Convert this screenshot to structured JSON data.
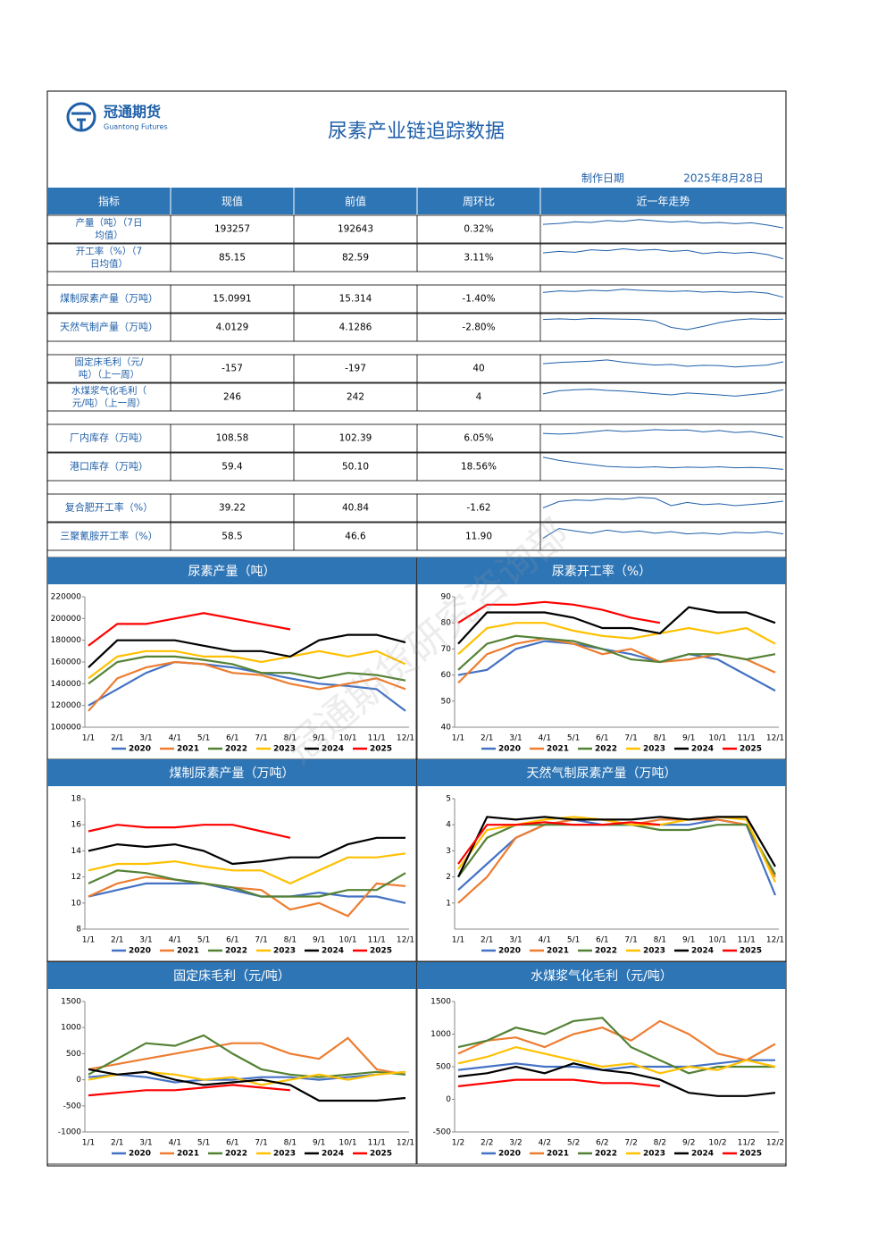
{
  "header": {
    "brand": "冠通期货",
    "brand_en": "Guantong Futures",
    "title": "尿素产业链追踪数据",
    "date_label": "制作日期",
    "date": "2025年8月28日",
    "watermark": "冠通期货研究咨询部"
  },
  "table": {
    "header": [
      "指标",
      "现值",
      "前值",
      "周环比",
      "近一年走势"
    ],
    "groups": [
      [
        {
          "label": "产量（吨）（7日均值）",
          "current": "193257",
          "previous": "192643",
          "change": "0.32%",
          "trend": [
            5,
            5.3,
            5.8,
            5.6,
            6.2,
            5.9,
            6.5,
            6.1,
            5.7,
            6,
            5.4,
            5.6,
            5.2,
            5.5,
            4.8,
            3.9
          ]
        },
        {
          "label": "开工率（%）（7日均值）",
          "current": "85.15",
          "previous": "82.59",
          "change": "3.11%",
          "trend": [
            5,
            5.5,
            5.2,
            6,
            5.7,
            6.3,
            5.8,
            6.1,
            5.5,
            5.8,
            4.8,
            5.3,
            4.9,
            5.2,
            4.5,
            3.2
          ]
        }
      ],
      [
        {
          "label": "煤制尿素产量（万吨）",
          "current": "15.0991",
          "previous": "15.314",
          "change": "-1.40%",
          "trend": [
            5.5,
            6,
            5.8,
            6.2,
            6,
            6.5,
            6.2,
            6,
            5.8,
            6,
            5.6,
            5.8,
            5.5,
            5.7,
            5.3,
            4
          ]
        },
        {
          "label": "天然气制产量（万吨）",
          "current": "4.0129",
          "previous": "4.1286",
          "change": "-2.80%",
          "trend": [
            6,
            6.2,
            6,
            6.3,
            6.2,
            6.1,
            6,
            5.5,
            3.5,
            2.8,
            3.8,
            5,
            5.8,
            6.2,
            6,
            6.1
          ]
        }
      ],
      [
        {
          "label": "固定床毛利（元/吨）（上一周）",
          "current": "-157",
          "previous": "-197",
          "change": "40",
          "trend": [
            5,
            5.4,
            5.6,
            5.8,
            6.2,
            5.5,
            5,
            4.6,
            4.8,
            4.2,
            4.5,
            4.4,
            4,
            4.3,
            4.6,
            5.6
          ]
        },
        {
          "label": "水煤浆气化毛利（元/吨）（上一周）",
          "current": "246",
          "previous": "242",
          "change": "4",
          "trend": [
            4.5,
            5.5,
            5.8,
            6,
            5.6,
            5.4,
            5,
            4.6,
            4.2,
            4.8,
            4.5,
            4.2,
            3.8,
            4.3,
            4.8,
            5.8
          ]
        }
      ],
      [
        {
          "label": "厂内库存（万吨）",
          "current": "108.58",
          "previous": "102.39",
          "change": "6.05%",
          "trend": [
            5,
            4.8,
            5,
            5.5,
            6,
            5.6,
            5.8,
            6.2,
            6,
            6.1,
            5.5,
            5.9,
            5.3,
            5.6,
            4.8,
            3.8
          ]
        },
        {
          "label": "港口库存（万吨）",
          "current": "59.4",
          "previous": "50.10",
          "change": "18.56%",
          "trend": [
            6.5,
            5.5,
            4.8,
            4.2,
            3.6,
            3.4,
            3.3,
            3.5,
            3.2,
            3.4,
            3.3,
            3.5,
            3.2,
            3.3,
            3.1,
            2.7
          ]
        }
      ],
      [
        {
          "label": "复合肥开工率（%）",
          "current": "39.22",
          "previous": "40.84",
          "change": "-1.62",
          "trend": [
            3.5,
            5.5,
            6,
            5.8,
            6.4,
            6.2,
            6.8,
            6.5,
            4.2,
            5.2,
            4.5,
            4.8,
            4.2,
            4.6,
            5,
            5.6
          ]
        },
        {
          "label": "三聚氰胺开工率（%）",
          "current": "58.5",
          "previous": "46.6",
          "change": "11.90",
          "trend": [
            3,
            6,
            5.2,
            4.5,
            5.5,
            4.8,
            5.2,
            4.5,
            5,
            4.3,
            4.6,
            4.2,
            4.8,
            4.6,
            5,
            4.3
          ]
        }
      ]
    ]
  },
  "chart_data": [
    {
      "type": "line",
      "title": "尿素产量（吨）",
      "categories": [
        "1/1",
        "2/1",
        "3/1",
        "4/1",
        "5/1",
        "6/1",
        "7/1",
        "8/1",
        "9/1",
        "10/1",
        "11/1",
        "12/1"
      ],
      "ylim": [
        100000,
        220000
      ],
      "yticks": [
        100000,
        120000,
        140000,
        160000,
        180000,
        200000,
        220000
      ],
      "legend": "bottom",
      "series": [
        {
          "name": "2020",
          "color": "#4472c4",
          "values": [
            120000,
            135000,
            150000,
            160000,
            158000,
            155000,
            150000,
            145000,
            140000,
            138000,
            135000,
            115000
          ]
        },
        {
          "name": "2021",
          "color": "#ed7d31",
          "values": [
            115000,
            145000,
            155000,
            160000,
            158000,
            150000,
            148000,
            140000,
            135000,
            140000,
            145000,
            135000
          ]
        },
        {
          "name": "2022",
          "color": "#548235",
          "values": [
            140000,
            160000,
            165000,
            165000,
            162000,
            158000,
            150000,
            150000,
            145000,
            150000,
            148000,
            143000
          ]
        },
        {
          "name": "2023",
          "color": "#ffc000",
          "values": [
            145000,
            165000,
            170000,
            170000,
            165000,
            165000,
            160000,
            165000,
            170000,
            165000,
            170000,
            158000
          ]
        },
        {
          "name": "2024",
          "color": "#000000",
          "values": [
            155000,
            180000,
            180000,
            180000,
            175000,
            170000,
            170000,
            165000,
            180000,
            185000,
            185000,
            178000
          ]
        },
        {
          "name": "2025",
          "color": "#ff0000",
          "values": [
            175000,
            195000,
            195000,
            200000,
            205000,
            200000,
            195000,
            190000,
            null,
            null,
            null,
            null
          ]
        }
      ]
    },
    {
      "type": "line",
      "title": "尿素开工率（%）",
      "categories": [
        "1/1",
        "2/1",
        "3/1",
        "4/1",
        "5/1",
        "6/1",
        "7/1",
        "8/1",
        "9/1",
        "10/1",
        "11/1",
        "12/1"
      ],
      "ylim": [
        40,
        90
      ],
      "yticks": [
        40,
        50,
        60,
        70,
        80,
        90
      ],
      "legend": "bottom",
      "series": [
        {
          "name": "2020",
          "color": "#4472c4",
          "values": [
            60,
            62,
            70,
            73,
            72,
            70,
            68,
            65,
            68,
            66,
            60,
            54
          ]
        },
        {
          "name": "2021",
          "color": "#ed7d31",
          "values": [
            57,
            68,
            72,
            74,
            72,
            68,
            70,
            65,
            66,
            68,
            66,
            61
          ]
        },
        {
          "name": "2022",
          "color": "#548235",
          "values": [
            62,
            72,
            75,
            74,
            73,
            70,
            66,
            65,
            68,
            68,
            66,
            68
          ]
        },
        {
          "name": "2023",
          "color": "#ffc000",
          "values": [
            68,
            78,
            80,
            80,
            77,
            75,
            74,
            76,
            78,
            76,
            78,
            72
          ]
        },
        {
          "name": "2024",
          "color": "#000000",
          "values": [
            72,
            84,
            84,
            84,
            82,
            78,
            78,
            76,
            86,
            84,
            84,
            80
          ]
        },
        {
          "name": "2025",
          "color": "#ff0000",
          "values": [
            80,
            87,
            87,
            88,
            87,
            85,
            82,
            80,
            null,
            null,
            null,
            null
          ]
        }
      ]
    },
    {
      "type": "line",
      "title": "煤制尿素产量（万吨）",
      "categories": [
        "1/1",
        "2/1",
        "3/1",
        "4/1",
        "5/1",
        "6/1",
        "7/1",
        "8/1",
        "9/1",
        "10/1",
        "11/1",
        "12/1"
      ],
      "ylim": [
        8,
        18
      ],
      "yticks": [
        8,
        10,
        12,
        14,
        16,
        18
      ],
      "legend": "bottom",
      "series": [
        {
          "name": "2020",
          "color": "#4472c4",
          "values": [
            10.5,
            11,
            11.5,
            11.5,
            11.5,
            11,
            10.5,
            10.5,
            10.8,
            10.5,
            10.5,
            10
          ]
        },
        {
          "name": "2021",
          "color": "#ed7d31",
          "values": [
            10.5,
            11.5,
            12,
            11.8,
            11.5,
            11.2,
            11,
            9.5,
            10,
            9,
            11.5,
            11.3
          ]
        },
        {
          "name": "2022",
          "color": "#548235",
          "values": [
            11.5,
            12.5,
            12.3,
            11.8,
            11.5,
            11.2,
            10.5,
            10.5,
            10.5,
            11,
            11,
            12.3
          ]
        },
        {
          "name": "2023",
          "color": "#ffc000",
          "values": [
            12.5,
            13,
            13,
            13.2,
            12.8,
            12.5,
            12.5,
            11.5,
            12.5,
            13.5,
            13.5,
            13.8
          ]
        },
        {
          "name": "2024",
          "color": "#000000",
          "values": [
            14,
            14.5,
            14.3,
            14.5,
            14,
            13,
            13.2,
            13.5,
            13.5,
            14.5,
            15,
            15
          ]
        },
        {
          "name": "2025",
          "color": "#ff0000",
          "values": [
            15.5,
            16,
            15.8,
            15.8,
            16,
            16,
            15.5,
            15,
            null,
            null,
            null,
            null
          ]
        }
      ]
    },
    {
      "type": "line",
      "title": "天然气制尿素产量（万吨）",
      "categories": [
        "1/1",
        "2/1",
        "3/1",
        "4/1",
        "5/1",
        "6/1",
        "7/1",
        "8/1",
        "9/1",
        "10/1",
        "11/1",
        "12/1"
      ],
      "ylim": [
        0,
        5
      ],
      "yticks": [
        1,
        2,
        3,
        4,
        5
      ],
      "legend": "bottom",
      "series": [
        {
          "name": "2020",
          "color": "#4472c4",
          "values": [
            1.5,
            2.5,
            3.5,
            4,
            4.2,
            4,
            4,
            4,
            4,
            4.2,
            4,
            1.3
          ]
        },
        {
          "name": "2021",
          "color": "#ed7d31",
          "values": [
            1,
            2,
            3.5,
            4,
            4.2,
            4.2,
            4,
            4.2,
            4.2,
            4.2,
            4,
            2
          ]
        },
        {
          "name": "2022",
          "color": "#548235",
          "values": [
            2,
            3.5,
            4,
            4,
            4,
            4,
            4,
            3.8,
            3.8,
            4,
            4,
            2.1
          ]
        },
        {
          "name": "2023",
          "color": "#ffc000",
          "values": [
            2.3,
            3.8,
            4,
            4.2,
            4.3,
            4.2,
            4,
            4,
            4.2,
            4.3,
            4.2,
            1.8
          ]
        },
        {
          "name": "2024",
          "color": "#000000",
          "values": [
            2,
            4.3,
            4.2,
            4.3,
            4.2,
            4.2,
            4.2,
            4.3,
            4.2,
            4.3,
            4.3,
            2.4
          ]
        },
        {
          "name": "2025",
          "color": "#ff0000",
          "values": [
            2.5,
            4,
            4,
            4.1,
            4,
            4,
            4.1,
            4,
            null,
            null,
            null,
            null
          ]
        }
      ]
    },
    {
      "type": "line",
      "title": "固定床毛利（元/吨）",
      "categories": [
        "1/1",
        "2/1",
        "3/1",
        "4/1",
        "5/1",
        "6/1",
        "7/1",
        "8/1",
        "9/1",
        "10/1",
        "11/1",
        "12/1"
      ],
      "ylim": [
        -1000,
        1500
      ],
      "yticks": [
        -1000,
        -500,
        0,
        500,
        1000,
        1500
      ],
      "legend": "bottom",
      "series": [
        {
          "name": "2020",
          "color": "#4472c4",
          "values": [
            50,
            100,
            50,
            -50,
            0,
            0,
            50,
            50,
            0,
            50,
            100,
            150
          ]
        },
        {
          "name": "2021",
          "color": "#ed7d31",
          "values": [
            200,
            300,
            400,
            500,
            600,
            700,
            700,
            500,
            400,
            800,
            200,
            100
          ]
        },
        {
          "name": "2022",
          "color": "#548235",
          "values": [
            100,
            400,
            700,
            650,
            850,
            500,
            200,
            100,
            50,
            100,
            150,
            100
          ]
        },
        {
          "name": "2023",
          "color": "#ffc000",
          "values": [
            0,
            100,
            150,
            100,
            0,
            50,
            -100,
            0,
            100,
            0,
            100,
            150
          ]
        },
        {
          "name": "2024",
          "color": "#000000",
          "values": [
            200,
            100,
            150,
            0,
            -100,
            -50,
            0,
            -100,
            -400,
            -400,
            -400,
            -350
          ]
        },
        {
          "name": "2025",
          "color": "#ff0000",
          "values": [
            -300,
            -250,
            -200,
            -200,
            -150,
            -100,
            -150,
            -200,
            null,
            null,
            null,
            null
          ]
        }
      ]
    },
    {
      "type": "line",
      "title": "水煤浆气化毛利（元/吨）",
      "categories": [
        "1/2",
        "2/2",
        "3/2",
        "4/2",
        "5/2",
        "6/2",
        "7/2",
        "8/2",
        "9/2",
        "10/2",
        "11/2",
        "12/2"
      ],
      "ylim": [
        -500,
        1500
      ],
      "yticks": [
        -500,
        0,
        500,
        1000,
        1500
      ],
      "legend": "bottom",
      "series": [
        {
          "name": "2020",
          "color": "#4472c4",
          "values": [
            450,
            500,
            550,
            500,
            500,
            450,
            500,
            500,
            500,
            550,
            600,
            600
          ]
        },
        {
          "name": "2021",
          "color": "#ed7d31",
          "values": [
            700,
            900,
            950,
            800,
            1000,
            1100,
            900,
            1200,
            1000,
            700,
            600,
            850
          ]
        },
        {
          "name": "2022",
          "color": "#548235",
          "values": [
            800,
            900,
            1100,
            1000,
            1200,
            1250,
            800,
            600,
            400,
            500,
            500,
            500
          ]
        },
        {
          "name": "2023",
          "color": "#ffc000",
          "values": [
            550,
            650,
            800,
            700,
            600,
            500,
            550,
            400,
            500,
            450,
            600,
            500
          ]
        },
        {
          "name": "2024",
          "color": "#000000",
          "values": [
            350,
            400,
            500,
            400,
            550,
            450,
            400,
            300,
            100,
            50,
            50,
            100
          ]
        },
        {
          "name": "2025",
          "color": "#ff0000",
          "values": [
            200,
            250,
            300,
            300,
            300,
            250,
            250,
            200,
            null,
            null,
            null,
            null
          ]
        }
      ]
    }
  ]
}
